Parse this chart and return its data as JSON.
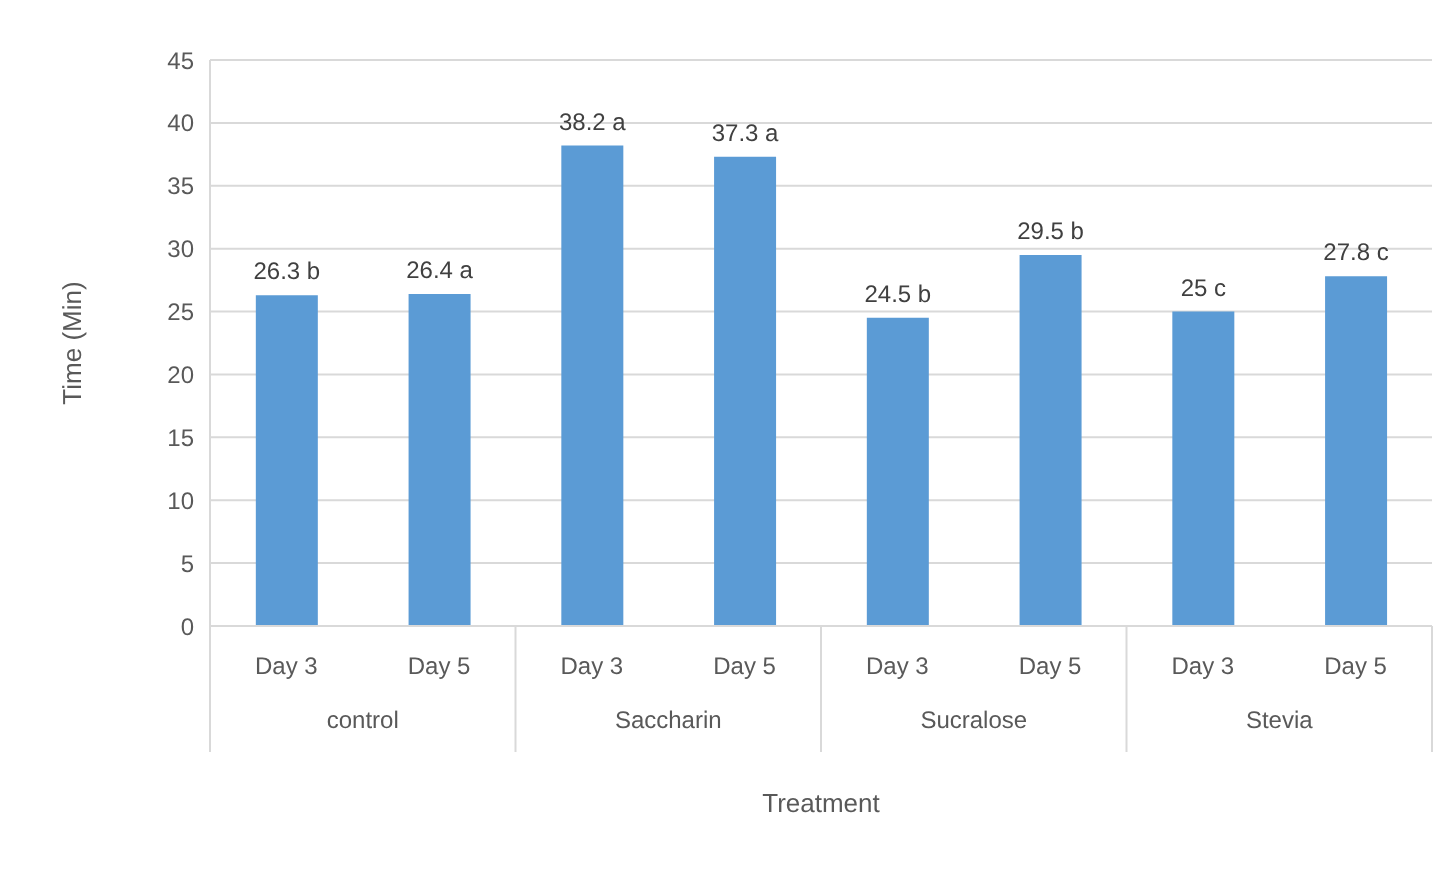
{
  "chart_data": {
    "type": "bar",
    "xlabel": "Treatment",
    "ylabel": "Time  (Min)",
    "categories": [
      "Day 3",
      "Day 5",
      "Day 3",
      "Day 5",
      "Day 3",
      "Day 5",
      "Day 3",
      "Day 5"
    ],
    "annotations": [
      "control",
      "Saccharin",
      "Sucralose",
      "Stevia"
    ],
    "values": [
      26.3,
      26.4,
      38.2,
      37.3,
      24.5,
      29.5,
      25,
      27.8
    ],
    "value_labels": [
      "26.3 b",
      "26.4 a",
      "38.2 a",
      "37.3 a",
      "24.5 b",
      "29.5 b",
      "25 c",
      "27.8 c"
    ],
    "color": "#5b9bd5",
    "ylim": [
      0,
      45
    ],
    "yticks": [
      0,
      5,
      10,
      15,
      20,
      25,
      30,
      35,
      40,
      45
    ],
    "grid": "y",
    "legend": false
  }
}
